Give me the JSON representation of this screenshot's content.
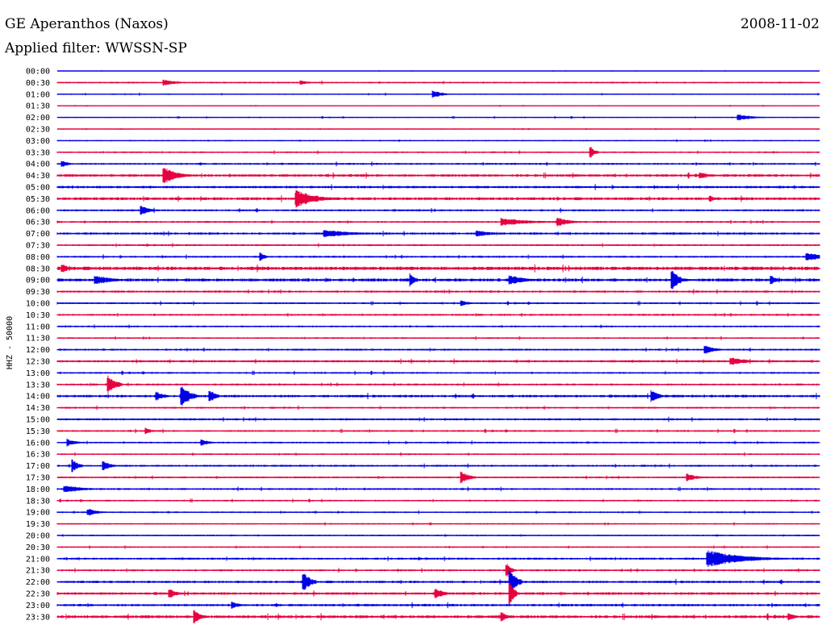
{
  "header": {
    "station": "GE Aperanthos (Naxos)",
    "date": "2008-11-02",
    "filter": "Applied filter: WWSSN-SP"
  },
  "colors": {
    "even_trace": "#0000e6",
    "odd_trace": "#e60040",
    "text": "#000000",
    "background": "#ffffff"
  },
  "chart_data": {
    "type": "line",
    "title": "GE Aperanthos (Naxos)",
    "subtitle": "Applied filter: WWSSN-SP",
    "ylabel": "HHZ - 50000",
    "xlabel": "",
    "grid": false,
    "legend": "none",
    "trace_minutes": 30,
    "row_labels": [
      "00:00",
      "00:30",
      "01:00",
      "01:30",
      "02:00",
      "02:30",
      "03:00",
      "03:30",
      "04:00",
      "04:30",
      "05:00",
      "05:30",
      "06:00",
      "06:30",
      "07:00",
      "07:30",
      "08:00",
      "08:30",
      "09:00",
      "09:30",
      "10:00",
      "10:30",
      "11:00",
      "11:30",
      "12:00",
      "12:30",
      "13:00",
      "13:30",
      "14:00",
      "14:30",
      "15:00",
      "15:30",
      "16:00",
      "16:30",
      "17:00",
      "17:30",
      "18:00",
      "18:30",
      "19:00",
      "19:30",
      "20:00",
      "20:30",
      "21:00",
      "21:30",
      "22:00",
      "22:30",
      "23:00",
      "23:30"
    ],
    "noise_level": [
      0.4,
      1.0,
      0.8,
      0.5,
      0.7,
      0.6,
      0.8,
      1.0,
      1.2,
      1.6,
      1.5,
      1.8,
      1.3,
      1.2,
      1.4,
      1.1,
      1.2,
      2.2,
      1.9,
      1.3,
      1.1,
      1.2,
      1.1,
      1.0,
      1.2,
      1.4,
      1.1,
      1.2,
      1.6,
      1.1,
      1.3,
      1.1,
      1.1,
      1.0,
      1.2,
      1.1,
      1.2,
      1.0,
      1.0,
      0.9,
      0.9,
      0.9,
      1.3,
      1.2,
      1.5,
      1.6,
      1.5,
      1.8
    ],
    "events": [
      {
        "row": 1,
        "minute": 4.2,
        "amp": 4,
        "dur": 1.0
      },
      {
        "row": 1,
        "minute": 9.6,
        "amp": 3,
        "dur": 0.6
      },
      {
        "row": 2,
        "minute": 14.8,
        "amp": 5,
        "dur": 0.7
      },
      {
        "row": 4,
        "minute": 26.8,
        "amp": 4,
        "dur": 1.2
      },
      {
        "row": 7,
        "minute": 21.0,
        "amp": 7,
        "dur": 0.3
      },
      {
        "row": 8,
        "minute": 0.2,
        "amp": 5,
        "dur": 0.4
      },
      {
        "row": 9,
        "minute": 4.2,
        "amp": 11,
        "dur": 1.0
      },
      {
        "row": 9,
        "minute": 25.3,
        "amp": 4,
        "dur": 1.0
      },
      {
        "row": 11,
        "minute": 9.4,
        "amp": 12,
        "dur": 1.5
      },
      {
        "row": 11,
        "minute": 25.7,
        "amp": 4,
        "dur": 0.5
      },
      {
        "row": 12,
        "minute": 3.3,
        "amp": 6,
        "dur": 0.7
      },
      {
        "row": 13,
        "minute": 17.5,
        "amp": 5,
        "dur": 2.5
      },
      {
        "row": 13,
        "minute": 19.7,
        "amp": 6,
        "dur": 1.0
      },
      {
        "row": 14,
        "minute": 10.5,
        "amp": 5,
        "dur": 2.5
      },
      {
        "row": 14,
        "minute": 16.5,
        "amp": 4,
        "dur": 1.5
      },
      {
        "row": 16,
        "minute": 29.5,
        "amp": 5,
        "dur": 2.0
      },
      {
        "row": 16,
        "minute": 8.0,
        "amp": 6,
        "dur": 0.3
      },
      {
        "row": 17,
        "minute": 0.2,
        "amp": 6,
        "dur": 0.5
      },
      {
        "row": 18,
        "minute": 1.5,
        "amp": 6,
        "dur": 1.5
      },
      {
        "row": 18,
        "minute": 13.9,
        "amp": 10,
        "dur": 0.3
      },
      {
        "row": 18,
        "minute": 17.8,
        "amp": 7,
        "dur": 1.3
      },
      {
        "row": 18,
        "minute": 24.2,
        "amp": 13,
        "dur": 0.5
      },
      {
        "row": 18,
        "minute": 28.1,
        "amp": 6,
        "dur": 0.4
      },
      {
        "row": 20,
        "minute": 15.9,
        "amp": 4,
        "dur": 0.6
      },
      {
        "row": 24,
        "minute": 25.5,
        "amp": 7,
        "dur": 0.6
      },
      {
        "row": 25,
        "minute": 26.5,
        "amp": 5,
        "dur": 1.5
      },
      {
        "row": 27,
        "minute": 2.0,
        "amp": 11,
        "dur": 0.6
      },
      {
        "row": 28,
        "minute": 4.9,
        "amp": 15,
        "dur": 0.6
      },
      {
        "row": 28,
        "minute": 6.0,
        "amp": 9,
        "dur": 0.4
      },
      {
        "row": 28,
        "minute": 23.4,
        "amp": 8,
        "dur": 0.5
      },
      {
        "row": 28,
        "minute": 3.9,
        "amp": 6,
        "dur": 0.6
      },
      {
        "row": 31,
        "minute": 3.5,
        "amp": 4,
        "dur": 0.4
      },
      {
        "row": 32,
        "minute": 0.4,
        "amp": 5,
        "dur": 0.6
      },
      {
        "row": 32,
        "minute": 5.7,
        "amp": 4,
        "dur": 0.6
      },
      {
        "row": 34,
        "minute": 0.6,
        "amp": 8,
        "dur": 0.4
      },
      {
        "row": 34,
        "minute": 1.8,
        "amp": 7,
        "dur": 0.5
      },
      {
        "row": 35,
        "minute": 15.9,
        "amp": 8,
        "dur": 0.6
      },
      {
        "row": 35,
        "minute": 24.8,
        "amp": 5,
        "dur": 0.8
      },
      {
        "row": 36,
        "minute": 0.3,
        "amp": 5,
        "dur": 1.5
      },
      {
        "row": 38,
        "minute": 1.2,
        "amp": 5,
        "dur": 0.8
      },
      {
        "row": 42,
        "minute": 25.6,
        "amp": 11,
        "dur": 2.8
      },
      {
        "row": 44,
        "minute": 9.7,
        "amp": 12,
        "dur": 0.5
      },
      {
        "row": 44,
        "minute": 17.8,
        "amp": 16,
        "dur": 0.5
      },
      {
        "row": 43,
        "minute": 17.7,
        "amp": 9,
        "dur": 0.3
      },
      {
        "row": 45,
        "minute": 4.4,
        "amp": 6,
        "dur": 0.6
      },
      {
        "row": 45,
        "minute": 14.9,
        "amp": 7,
        "dur": 0.6
      },
      {
        "row": 45,
        "minute": 17.8,
        "amp": 16,
        "dur": 0.3
      },
      {
        "row": 46,
        "minute": 6.9,
        "amp": 5,
        "dur": 0.5
      },
      {
        "row": 47,
        "minute": 5.4,
        "amp": 9,
        "dur": 0.4
      },
      {
        "row": 47,
        "minute": 17.5,
        "amp": 7,
        "dur": 0.3
      },
      {
        "row": 47,
        "minute": 28.8,
        "amp": 6,
        "dur": 0.4
      }
    ]
  }
}
